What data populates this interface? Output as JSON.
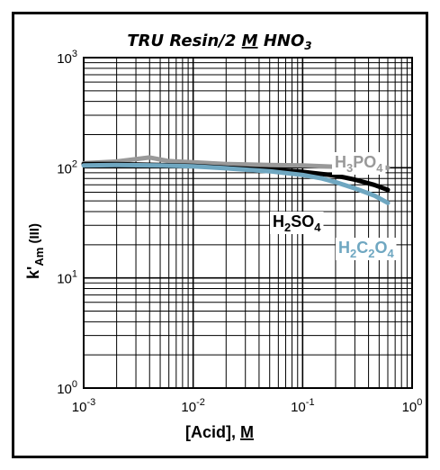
{
  "chart_data": {
    "type": "line",
    "title": {
      "main": "TRU Resin/2 ",
      "m": "M",
      "rest": " HNO",
      "sub3": "3"
    },
    "xlabel": {
      "main": "[Acid], ",
      "unit": "M"
    },
    "ylabel": {
      "k": "k'",
      "sub": "Am",
      "rest": " (III)"
    },
    "x_scale": "log",
    "y_scale": "log",
    "xlim": [
      0.001,
      1
    ],
    "ylim": [
      1,
      1000
    ],
    "grid": true,
    "x_ticks": [
      {
        "base": "10",
        "exp": "-3",
        "value": 0.001
      },
      {
        "base": "10",
        "exp": "-2",
        "value": 0.01
      },
      {
        "base": "10",
        "exp": "-1",
        "value": 0.1
      },
      {
        "base": "10",
        "exp": "0",
        "value": 1
      }
    ],
    "y_ticks": [
      {
        "base": "10",
        "exp": "0",
        "value": 1
      },
      {
        "base": "10",
        "exp": "1",
        "value": 10
      },
      {
        "base": "10",
        "exp": "2",
        "value": 100
      },
      {
        "base": "10",
        "exp": "3",
        "value": 1000
      }
    ],
    "series": [
      {
        "label_parts": [
          [
            "H",
            ""
          ],
          [
            "3",
            "sub"
          ],
          [
            "PO",
            ""
          ],
          [
            "4",
            "sub"
          ]
        ],
        "color": "#999999",
        "x": [
          0.001,
          0.002,
          0.004,
          0.006,
          0.01,
          0.02,
          0.05,
          0.1,
          0.2,
          0.3,
          0.6
        ],
        "y": [
          110,
          114,
          124,
          115,
          112,
          108,
          106,
          105,
          102,
          100,
          100
        ]
      },
      {
        "label_parts": [
          [
            "H",
            ""
          ],
          [
            "2",
            "sub"
          ],
          [
            "SO",
            ""
          ],
          [
            "4",
            "sub"
          ]
        ],
        "color": "#000000",
        "x": [
          0.001,
          0.002,
          0.005,
          0.01,
          0.02,
          0.05,
          0.1,
          0.2,
          0.3,
          0.45,
          0.6
        ],
        "y": [
          108,
          108,
          106,
          104,
          100,
          96,
          92,
          85,
          78,
          70,
          63
        ]
      },
      {
        "label_parts": [
          [
            "H",
            ""
          ],
          [
            "2",
            "sub"
          ],
          [
            "C",
            ""
          ],
          [
            "2",
            "sub"
          ],
          [
            "O",
            ""
          ],
          [
            "4",
            "sub"
          ]
        ],
        "color": "#6fa7c1",
        "x": [
          0.001,
          0.002,
          0.005,
          0.01,
          0.02,
          0.05,
          0.1,
          0.15,
          0.2,
          0.3,
          0.45,
          0.6
        ],
        "y": [
          105,
          106,
          105,
          103,
          99,
          93,
          86,
          80,
          74,
          65,
          56,
          48
        ]
      }
    ]
  }
}
